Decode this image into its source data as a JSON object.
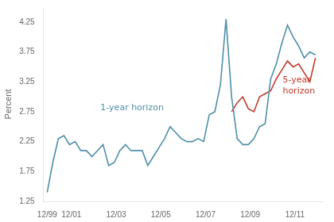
{
  "chart_data": {
    "type": "line",
    "ylabel": "Percent",
    "background_color": "#ffffff",
    "xlim": [
      1999.75,
      2012.25
    ],
    "xticks": [
      {
        "value": 1999.917,
        "label": "12/99"
      },
      {
        "value": 2001.0,
        "label": "12/01"
      },
      {
        "value": 2003.0,
        "label": "12/03"
      },
      {
        "value": 2005.0,
        "label": "12/05"
      },
      {
        "value": 2007.0,
        "label": "12/07"
      },
      {
        "value": 2009.0,
        "label": "12/09"
      },
      {
        "value": 2011.0,
        "label": "12/11"
      }
    ],
    "ylim": [
      1.25,
      4.5
    ],
    "yticks": [
      1.25,
      1.75,
      2.25,
      2.75,
      3.25,
      3.75,
      4.25
    ],
    "grid": false,
    "series": [
      {
        "color": "#4d8fa8",
        "x": [
          1999.917,
          2000.167,
          2000.417,
          2000.667,
          2000.917,
          2001.167,
          2001.417,
          2001.667,
          2001.917,
          2002.167,
          2002.417,
          2002.667,
          2002.917,
          2003.167,
          2003.417,
          2003.667,
          2003.917,
          2004.167,
          2004.417,
          2004.667,
          2004.917,
          2005.167,
          2005.417,
          2005.667,
          2005.917,
          2006.167,
          2006.417,
          2006.667,
          2006.917,
          2007.167,
          2007.417,
          2007.667,
          2007.917,
          2008.167,
          2008.417,
          2008.667,
          2008.917,
          2009.167,
          2009.417,
          2009.667,
          2009.917,
          2010.167,
          2010.417,
          2010.667,
          2010.917,
          2011.167,
          2011.417,
          2011.667,
          2011.917
        ],
        "values": [
          1.4,
          1.9,
          2.3,
          2.35,
          2.2,
          2.25,
          2.1,
          2.1,
          2.0,
          2.1,
          2.2,
          1.85,
          1.9,
          2.1,
          2.2,
          2.1,
          2.1,
          2.1,
          1.85,
          2.0,
          2.15,
          2.3,
          2.5,
          2.4,
          2.3,
          2.25,
          2.25,
          2.3,
          2.25,
          2.7,
          2.75,
          3.2,
          4.3,
          3.0,
          2.3,
          2.2,
          2.2,
          2.3,
          2.5,
          2.55,
          3.3,
          3.55,
          3.9,
          4.2,
          4.0,
          3.85,
          3.65,
          3.75,
          3.7
        ]
      },
      {
        "color": "#c0392b",
        "x": [
          2008.167,
          2008.417,
          2008.667,
          2008.917,
          2009.167,
          2009.417,
          2009.667,
          2009.917,
          2010.167,
          2010.417,
          2010.667,
          2010.917,
          2011.167,
          2011.417,
          2011.667,
          2011.917
        ],
        "values": [
          2.75,
          2.9,
          3.0,
          2.8,
          2.75,
          3.0,
          3.05,
          3.1,
          3.3,
          3.45,
          3.6,
          3.5,
          3.55,
          3.4,
          3.25,
          3.65
        ]
      }
    ],
    "annotations": [
      {
        "text": "1-year horizon",
        "x": 2002.3,
        "y": 2.82,
        "color": "#4d8fa8"
      },
      {
        "text": "5-year\nhorizon",
        "x": 2010.45,
        "y": 3.18,
        "color": "#c0392b"
      }
    ]
  }
}
